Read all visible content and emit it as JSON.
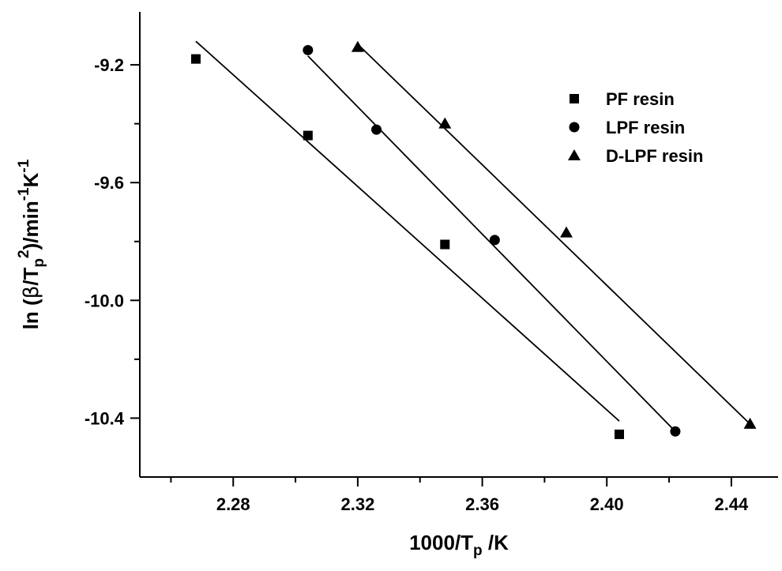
{
  "chart_data": {
    "type": "scatter",
    "xlabel": {
      "prefix": "1000/T",
      "sub": "p",
      "suffix": " /K"
    },
    "ylabel": {
      "p1": "ln (",
      "beta": "β",
      "p2": "/T",
      "sub": "p",
      "sup2": "2",
      "p3": ")/min",
      "sup3": "-1",
      "p4": "K",
      "sup4": "-1"
    },
    "xlim": [
      2.25,
      2.455
    ],
    "ylim": [
      -10.6,
      -9.02
    ],
    "x_ticks": [
      2.28,
      2.32,
      2.36,
      2.4,
      2.44
    ],
    "x_tick_labels": [
      "2.28",
      "2.32",
      "2.36",
      "2.40",
      "2.44"
    ],
    "x_minor_ticks": [
      2.26,
      2.3,
      2.34,
      2.38,
      2.42
    ],
    "y_ticks": [
      -9.2,
      -9.6,
      -10.0,
      -10.4
    ],
    "y_tick_labels": [
      "-9.2",
      "-9.6",
      "-10.0",
      "-10.4"
    ],
    "y_minor_ticks": [
      -9.4,
      -9.8,
      -10.2
    ],
    "legend_position": "top-right",
    "series": [
      {
        "name": "PF resin",
        "marker": "square",
        "points": [
          [
            2.268,
            -9.18
          ],
          [
            2.304,
            -9.44
          ],
          [
            2.348,
            -9.81
          ],
          [
            2.404,
            -10.455
          ]
        ],
        "fit": [
          [
            2.268,
            -9.12
          ],
          [
            2.404,
            -10.41
          ]
        ]
      },
      {
        "name": "LPF resin",
        "marker": "circle",
        "points": [
          [
            2.304,
            -9.15
          ],
          [
            2.326,
            -9.42
          ],
          [
            2.364,
            -9.795
          ],
          [
            2.422,
            -10.445
          ]
        ],
        "fit": [
          [
            2.304,
            -9.17
          ],
          [
            2.422,
            -10.445
          ]
        ]
      },
      {
        "name": "D-LPF resin",
        "marker": "triangle",
        "points": [
          [
            2.32,
            -9.14
          ],
          [
            2.348,
            -9.4
          ],
          [
            2.387,
            -9.77
          ],
          [
            2.446,
            -10.42
          ]
        ],
        "fit": [
          [
            2.32,
            -9.13
          ],
          [
            2.446,
            -10.42
          ]
        ]
      }
    ]
  }
}
